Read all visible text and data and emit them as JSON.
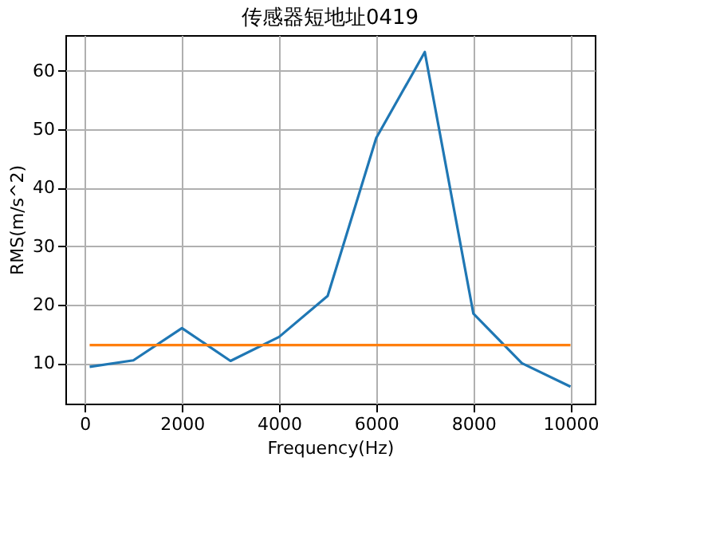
{
  "chart_data": {
    "type": "line",
    "title": "传感器短地址0419",
    "xlabel": "Frequency(Hz)",
    "ylabel": "RMS(m/s^2)",
    "x": [
      100,
      1000,
      2000,
      3000,
      4000,
      5000,
      6000,
      7000,
      8000,
      9000,
      10000
    ],
    "series": [
      {
        "color": "#1f77b4",
        "values": [
          9.4,
          10.5,
          16.0,
          10.4,
          14.5,
          21.5,
          48.5,
          63.2,
          18.5,
          10.0,
          6.0
        ]
      },
      {
        "color": "#ff7f0e",
        "values": [
          13.1,
          13.1,
          13.1,
          13.1,
          13.1,
          13.1,
          13.1,
          13.1,
          13.1,
          13.1,
          13.1
        ]
      }
    ],
    "xlim": [
      -400,
      10500
    ],
    "ylim": [
      3.1,
      66.1
    ],
    "xticks": [
      0,
      2000,
      4000,
      6000,
      8000,
      10000
    ],
    "yticks": [
      10,
      20,
      30,
      40,
      50,
      60
    ],
    "grid": true,
    "marker": "none",
    "line_style": "solid"
  }
}
